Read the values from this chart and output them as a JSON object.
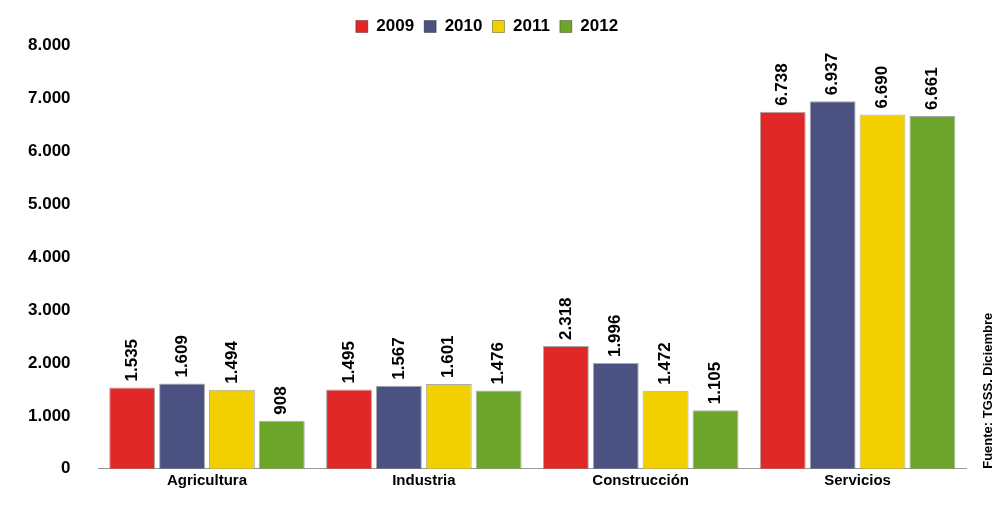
{
  "chart_data": {
    "type": "bar",
    "categories": [
      "Agricultura",
      "Industria",
      "Construcción",
      "Servicios"
    ],
    "series": [
      {
        "name": "2009",
        "color": "#e02828",
        "values": [
          1535,
          1495,
          2318,
          6738
        ],
        "value_labels": [
          "1.535",
          "1.495",
          "2.318",
          "6.738"
        ]
      },
      {
        "name": "2010",
        "color": "#4b5282",
        "values": [
          1609,
          1567,
          1996,
          6937
        ],
        "value_labels": [
          "1.609",
          "1.567",
          "1.996",
          "6.937"
        ]
      },
      {
        "name": "2011",
        "color": "#f2d000",
        "values": [
          1494,
          1601,
          1472,
          6690
        ],
        "value_labels": [
          "1.494",
          "1.601",
          "1.472",
          "6.690"
        ]
      },
      {
        "name": "2012",
        "color": "#6ca52a",
        "values": [
          908,
          1476,
          1105,
          6661
        ],
        "value_labels": [
          "908",
          "1.476",
          "1.105",
          "6.661"
        ]
      }
    ],
    "ylim": [
      0,
      8000
    ],
    "yticks": [
      {
        "value": 0,
        "label": "0"
      },
      {
        "value": 1000,
        "label": "1.000"
      },
      {
        "value": 2000,
        "label": "2.000"
      },
      {
        "value": 3000,
        "label": "3.000"
      },
      {
        "value": 4000,
        "label": "4.000"
      },
      {
        "value": 5000,
        "label": "5.000"
      },
      {
        "value": 6000,
        "label": "6.000"
      },
      {
        "value": 7000,
        "label": "7.000"
      },
      {
        "value": 8000,
        "label": "8.000"
      }
    ],
    "grid": false,
    "legend": "top",
    "annotations": [
      "Fuente: TGSS. Diciembre"
    ]
  }
}
